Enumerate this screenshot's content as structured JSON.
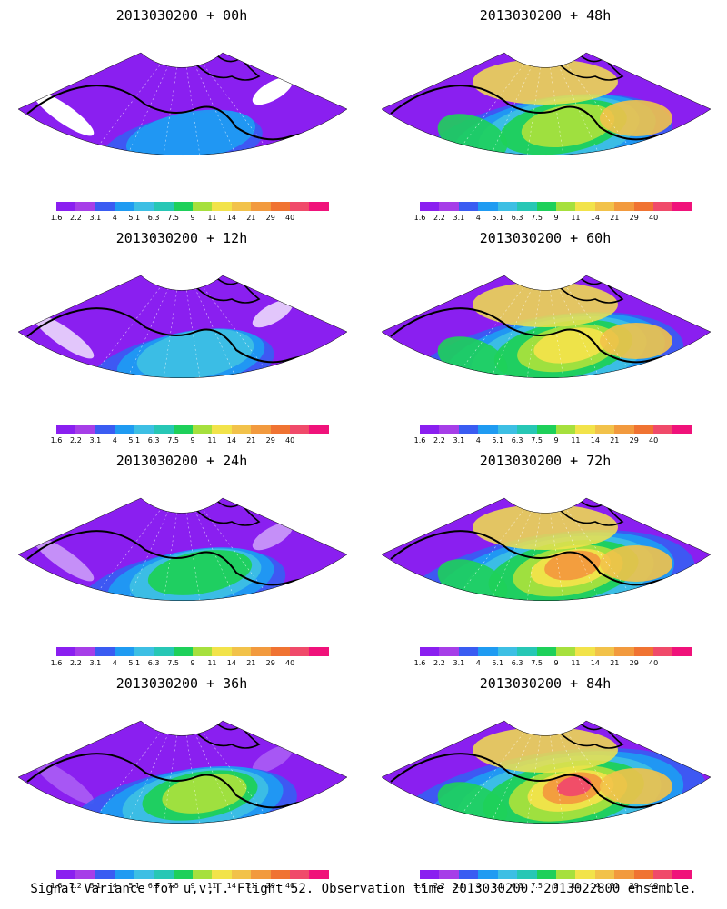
{
  "colors": {
    "scale": [
      "#8a1ff0",
      "#a63ee8",
      "#3a5cf2",
      "#1f9bf2",
      "#3dbfe4",
      "#27c7b5",
      "#1ed05a",
      "#a6e03d",
      "#f2e34a",
      "#f2c24a",
      "#f29a3e",
      "#f07332",
      "#f04a6a",
      "#f0127a"
    ],
    "coast": "#000000"
  },
  "colorbar": {
    "labels": [
      "1.6",
      "2.2",
      "3.1",
      "4",
      "5.1",
      "6.3",
      "7.5",
      "9",
      "11",
      "14",
      "21",
      "29",
      "40"
    ]
  },
  "panels": [
    {
      "title": "2013030200 + 00h",
      "lead": 0
    },
    {
      "title": "2013030200 + 48h",
      "lead": 48
    },
    {
      "title": "2013030200 + 12h",
      "lead": 12
    },
    {
      "title": "2013030200 + 60h",
      "lead": 60
    },
    {
      "title": "2013030200 + 24h",
      "lead": 24
    },
    {
      "title": "2013030200 + 72h",
      "lead": 72
    },
    {
      "title": "2013030200 + 36h",
      "lead": 36
    },
    {
      "title": "2013030200 + 84h",
      "lead": 84
    }
  ],
  "caption": "Signal Variance for u,v,T. Flight 52. Observation time 2013030200. 2013022800 ensemble."
}
